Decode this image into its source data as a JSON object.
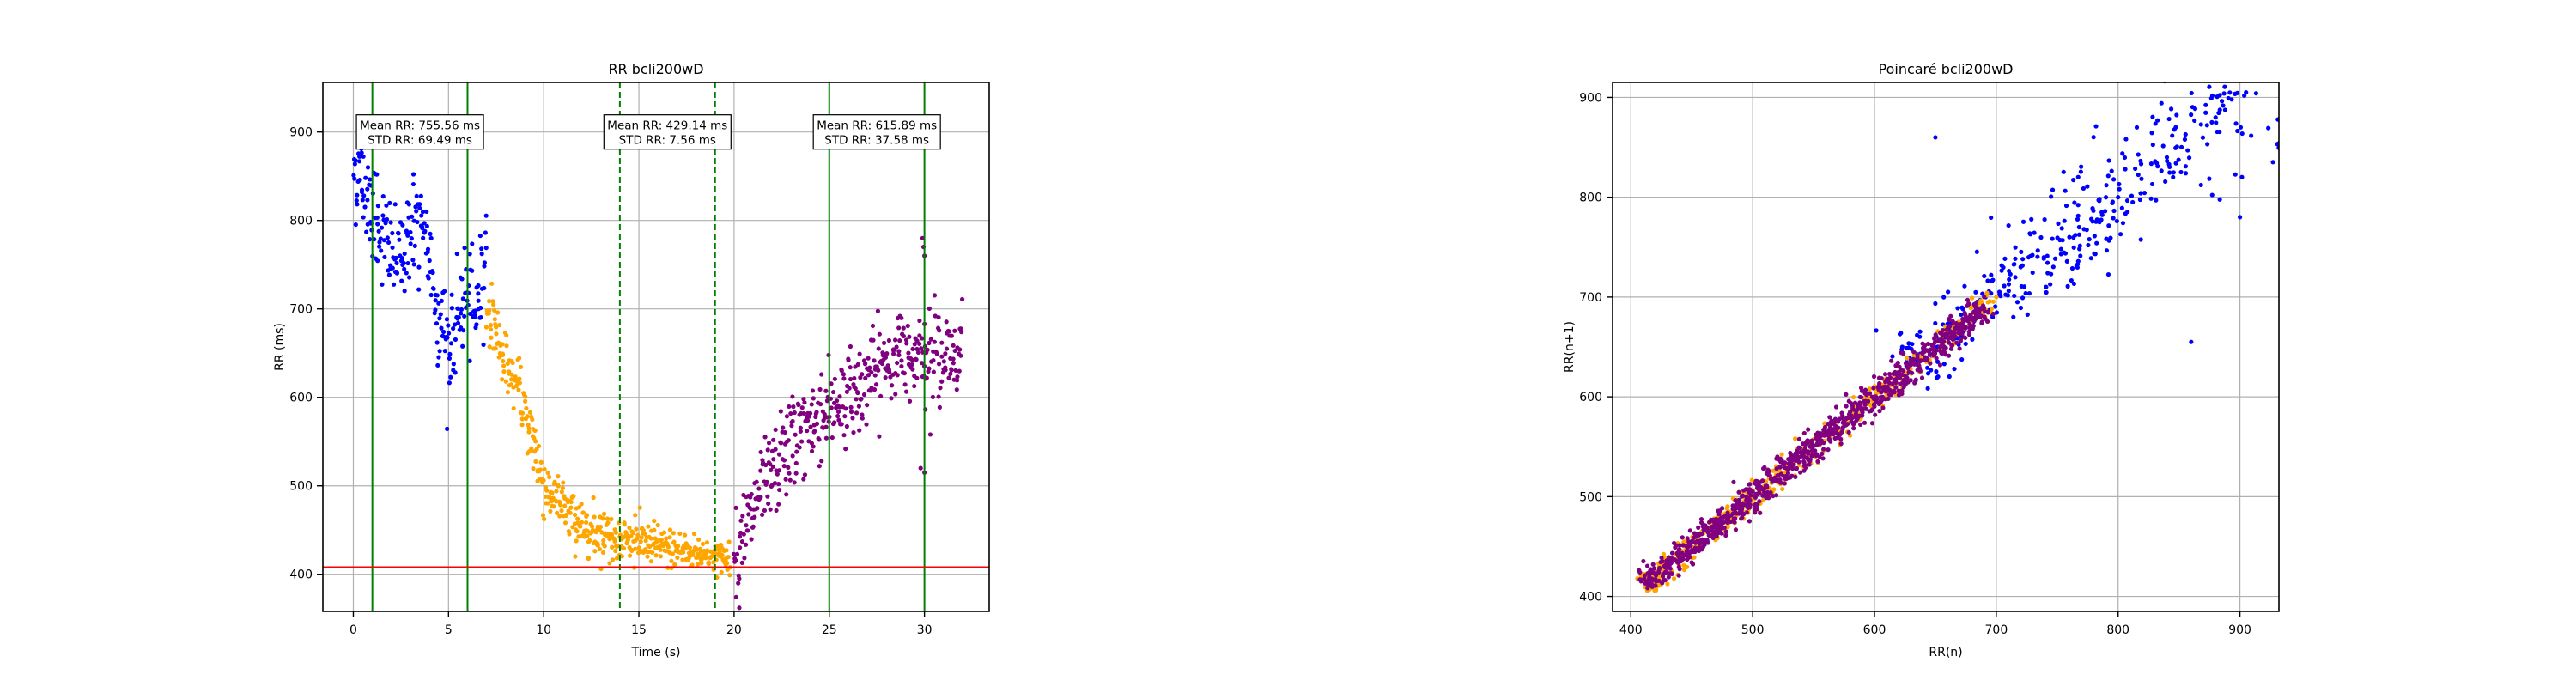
{
  "chart_data": [
    {
      "type": "scatter",
      "title": "RR bcli200wD",
      "xlabel": "Time (s)",
      "ylabel": "RR (ms)",
      "xlim": [
        -1.6,
        33.4
      ],
      "ylim": [
        358,
        956
      ],
      "xticks": [
        0,
        5,
        10,
        15,
        20,
        25,
        30
      ],
      "yticks": [
        400,
        500,
        600,
        700,
        800,
        900
      ],
      "grid": true,
      "series": [
        {
          "color": "#0000ff",
          "points": [
            [
              0.0,
              860
            ],
            [
              0.8,
              830
            ],
            [
              1.6,
              780
            ],
            [
              2.4,
              750
            ],
            [
              3.1,
              800
            ],
            [
              3.9,
              770
            ],
            [
              4.6,
              680
            ],
            [
              5.2,
              650
            ],
            [
              5.8,
              720
            ],
            [
              6.3,
              690
            ],
            [
              7.0,
              760
            ]
          ]
        },
        {
          "color": "#ffa500",
          "points": [
            [
              7.0,
              710
            ],
            [
              8.0,
              640
            ],
            [
              9.0,
              590
            ],
            [
              10.0,
              500
            ],
            [
              12.0,
              455
            ],
            [
              14.0,
              440
            ],
            [
              16.0,
              432
            ],
            [
              18.0,
              425
            ],
            [
              19.8,
              418
            ]
          ]
        },
        {
          "color": "#800080",
          "points": [
            [
              20.0,
              415
            ],
            [
              21.0,
              470
            ],
            [
              22.0,
              510
            ],
            [
              23.0,
              550
            ],
            [
              24.0,
              570
            ],
            [
              25.0,
              590
            ],
            [
              26.0,
              600
            ],
            [
              27.0,
              620
            ],
            [
              28.0,
              640
            ],
            [
              29.0,
              650
            ],
            [
              30.0,
              660
            ],
            [
              31.0,
              640
            ],
            [
              32.0,
              660
            ]
          ]
        }
      ],
      "vlines": [
        {
          "x": 1,
          "color": "#008000",
          "style": "solid"
        },
        {
          "x": 6,
          "color": "#008000",
          "style": "solid"
        },
        {
          "x": 14,
          "color": "#008000",
          "style": "dashed"
        },
        {
          "x": 19,
          "color": "#008000",
          "style": "dashed"
        },
        {
          "x": 25,
          "color": "#008000",
          "style": "solid"
        },
        {
          "x": 30,
          "color": "#008000",
          "style": "solid"
        }
      ],
      "hline": {
        "y": 408,
        "color": "#ff0000"
      },
      "annotations": [
        {
          "x": 3.5,
          "y": 900,
          "lines": [
            "Mean RR: 755.56 ms",
            "STD RR: 69.49 ms"
          ]
        },
        {
          "x": 16.5,
          "y": 900,
          "lines": [
            "Mean RR: 429.14 ms",
            "STD RR: 7.56 ms"
          ]
        },
        {
          "x": 27.5,
          "y": 900,
          "lines": [
            "Mean RR: 615.89 ms",
            "STD RR: 37.58 ms"
          ]
        }
      ]
    },
    {
      "type": "scatter",
      "title": "Poincaré bcli200wD",
      "xlabel": "RR(n)",
      "ylabel": "RR(n+1)",
      "xlim": [
        385,
        932
      ],
      "ylim": [
        385,
        915
      ],
      "xticks": [
        400,
        500,
        600,
        700,
        800,
        900
      ],
      "yticks": [
        400,
        500,
        600,
        700,
        800,
        900
      ],
      "grid": true,
      "series": [
        {
          "color": "#0000ff",
          "points": [
            [
              640,
              645
            ],
            [
              680,
              690
            ],
            [
              720,
              730
            ],
            [
              760,
              760
            ],
            [
              800,
              800
            ],
            [
              840,
              840
            ],
            [
              880,
              880
            ],
            [
              905,
              905
            ],
            [
              650,
              860
            ],
            [
              860,
              655
            ],
            [
              900,
              780
            ]
          ]
        },
        {
          "color": "#ffa500",
          "points": [
            [
              415,
              415
            ],
            [
              430,
              428
            ],
            [
              450,
              455
            ],
            [
              480,
              482
            ],
            [
              520,
              520
            ],
            [
              560,
              565
            ],
            [
              600,
              600
            ],
            [
              640,
              640
            ],
            [
              680,
              690
            ],
            [
              700,
              700
            ]
          ]
        },
        {
          "color": "#800080",
          "points": [
            [
              415,
              418
            ],
            [
              450,
              455
            ],
            [
              500,
              505
            ],
            [
              540,
              545
            ],
            [
              580,
              585
            ],
            [
              620,
              625
            ],
            [
              650,
              660
            ],
            [
              690,
              700
            ]
          ]
        }
      ]
    }
  ]
}
